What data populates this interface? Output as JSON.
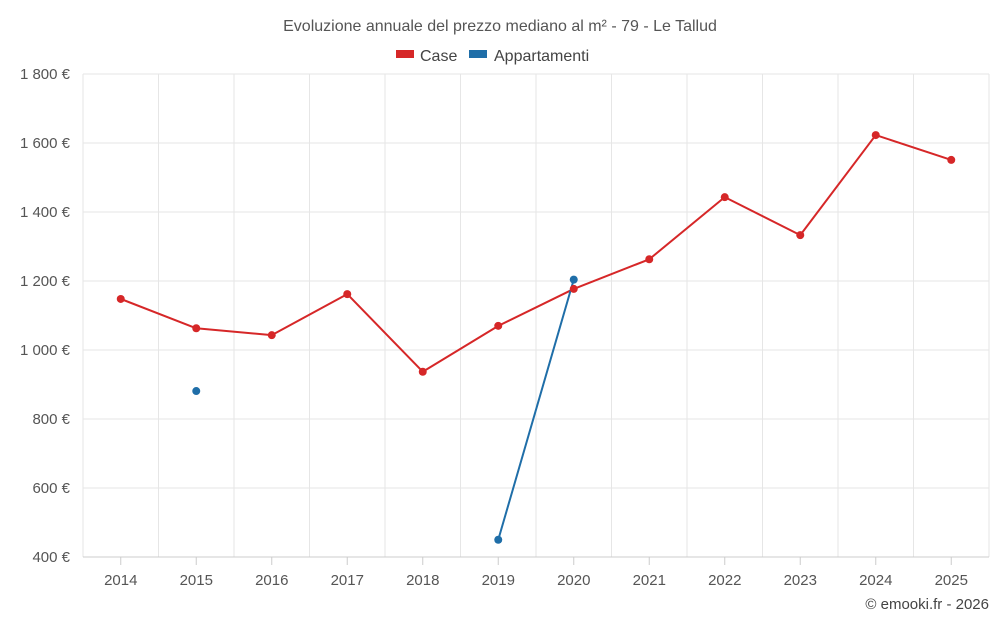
{
  "chart_data": {
    "type": "line",
    "title": "Evoluzione annuale del prezzo mediano al m² - 79 - Le Tallud",
    "categories": [
      "2014",
      "2015",
      "2016",
      "2017",
      "2018",
      "2019",
      "2020",
      "2021",
      "2022",
      "2023",
      "2024",
      "2025"
    ],
    "yticks": [
      400,
      600,
      800,
      1000,
      1200,
      1400,
      1600,
      1800
    ],
    "ytick_labels": [
      "400 €",
      "600 €",
      "800 €",
      "1 000 €",
      "1 200 €",
      "1 400 €",
      "1 600 €",
      "1 800 €"
    ],
    "ylim": [
      400,
      1800
    ],
    "xlabel": "",
    "ylabel": "",
    "grid": true,
    "legend_position": "top-center",
    "series": [
      {
        "name": "Case",
        "color": "#d62728",
        "values": [
          1148,
          1063,
          1043,
          1162,
          937,
          1070,
          1177,
          1263,
          1443,
          1333,
          1623,
          1551
        ]
      },
      {
        "name": "Appartamenti",
        "color": "#1f6ea8",
        "values": [
          null,
          881,
          null,
          null,
          null,
          450,
          1204,
          null,
          null,
          null,
          null,
          null
        ]
      }
    ]
  },
  "credit": "© emooki.fr - 2026"
}
